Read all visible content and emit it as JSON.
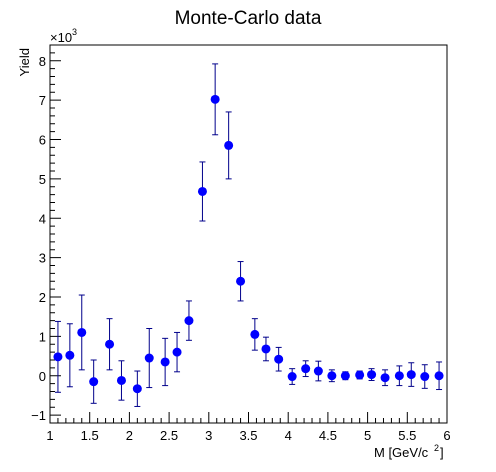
{
  "colors": {
    "marker": "#0000ff",
    "error_bar": "#00008b",
    "axis": "#000000",
    "background": "#ffffff"
  },
  "chart_data": {
    "type": "scatter",
    "title": "Monte-Carlo data",
    "xlabel_main": "M [GeV/c",
    "xlabel_sup": "2",
    "xlabel_end": "]",
    "ylabel": "Yield",
    "y_multiplier_base": "×10",
    "y_multiplier_exp": "3",
    "xlim": [
      1,
      6
    ],
    "ylim": [
      -1.2,
      8.4
    ],
    "x_major_ticks": [
      1,
      1.5,
      2,
      2.5,
      3,
      3.5,
      4,
      4.5,
      5,
      5.5,
      6
    ],
    "x_tick_labels": [
      "1",
      "1.5",
      "2",
      "2.5",
      "3",
      "3.5",
      "4",
      "4.5",
      "5",
      "5.5",
      "6"
    ],
    "y_major_ticks": [
      -1,
      0,
      1,
      2,
      3,
      4,
      5,
      6,
      7,
      8
    ],
    "y_tick_labels": [
      "−1",
      "0",
      "1",
      "2",
      "3",
      "4",
      "5",
      "6",
      "7",
      "8"
    ],
    "bin_half_width": 0.05,
    "series": [
      {
        "name": "Monte-Carlo data",
        "x": [
          1.1,
          1.25,
          1.4,
          1.55,
          1.75,
          1.9,
          2.1,
          2.25,
          2.45,
          2.6,
          2.75,
          2.92,
          3.08,
          3.25,
          3.4,
          3.58,
          3.72,
          3.88,
          4.05,
          4.22,
          4.38,
          4.55,
          4.72,
          4.9,
          5.05,
          5.22,
          5.4,
          5.55,
          5.72,
          5.9
        ],
        "y": [
          0.48,
          0.52,
          1.1,
          -0.15,
          0.8,
          -0.12,
          -0.33,
          0.45,
          0.35,
          0.6,
          1.4,
          4.68,
          7.02,
          5.85,
          2.4,
          1.05,
          0.68,
          0.42,
          -0.02,
          0.18,
          0.12,
          0.0,
          0.0,
          0.02,
          0.03,
          -0.05,
          0.0,
          0.03,
          -0.02,
          0.0
        ],
        "err": [
          0.9,
          0.8,
          0.95,
          0.55,
          0.65,
          0.5,
          0.45,
          0.75,
          0.6,
          0.5,
          0.5,
          0.75,
          0.9,
          0.85,
          0.5,
          0.4,
          0.3,
          0.3,
          0.2,
          0.2,
          0.25,
          0.15,
          0.1,
          0.1,
          0.15,
          0.2,
          0.25,
          0.3,
          0.3,
          0.35
        ]
      }
    ]
  }
}
